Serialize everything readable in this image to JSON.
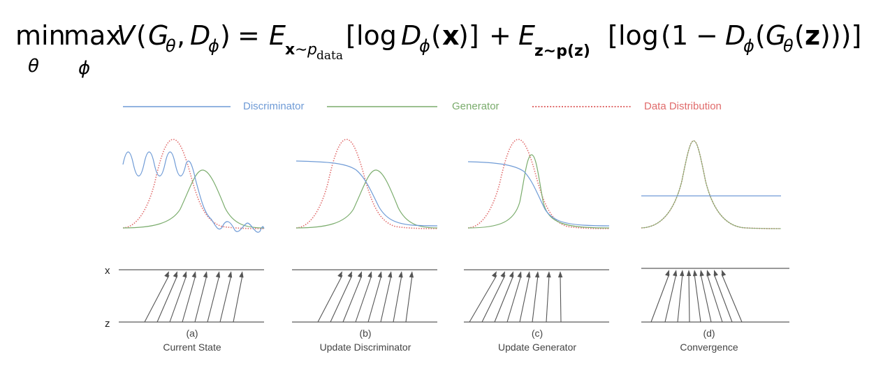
{
  "formula": {
    "min": "min",
    "max": "max",
    "min_sub": "θ",
    "max_sub": "ϕ",
    "V": "V",
    "G": "G",
    "G_sub": "θ",
    "D": "D",
    "D_sub": "ϕ",
    "E": "E",
    "E1_sub_x": "x",
    "E1_sub_sim": "∼",
    "E1_sub_p": "p",
    "E1_sub_data": "data",
    "E2_sub": "z∼p(z)",
    "log": "log",
    "x": "x",
    "z": "z",
    "one": "1",
    "minus": "−",
    "plus": "+",
    "eq": "="
  },
  "legend": {
    "items": [
      {
        "label": "Discriminator",
        "color": "#6f9bd6",
        "style": "solid"
      },
      {
        "label": "Generator",
        "color": "#7aac6c",
        "style": "solid"
      },
      {
        "label": "Data Distribution",
        "color": "#e06b6b",
        "style": "dotted"
      }
    ]
  },
  "axes": {
    "x_label": "x",
    "z_label": "z"
  },
  "panels": [
    {
      "letter": "(a)",
      "caption": "Current State"
    },
    {
      "letter": "(b)",
      "caption": "Update Discriminator"
    },
    {
      "letter": "(c)",
      "caption": "Update Generator"
    },
    {
      "letter": "(d)",
      "caption": "Convergence"
    }
  ],
  "colors": {
    "discriminator": "#6f9bd6",
    "generator": "#7aac6c",
    "data": "#e06b6b",
    "arrow": "#555555",
    "axis": "#333333"
  }
}
